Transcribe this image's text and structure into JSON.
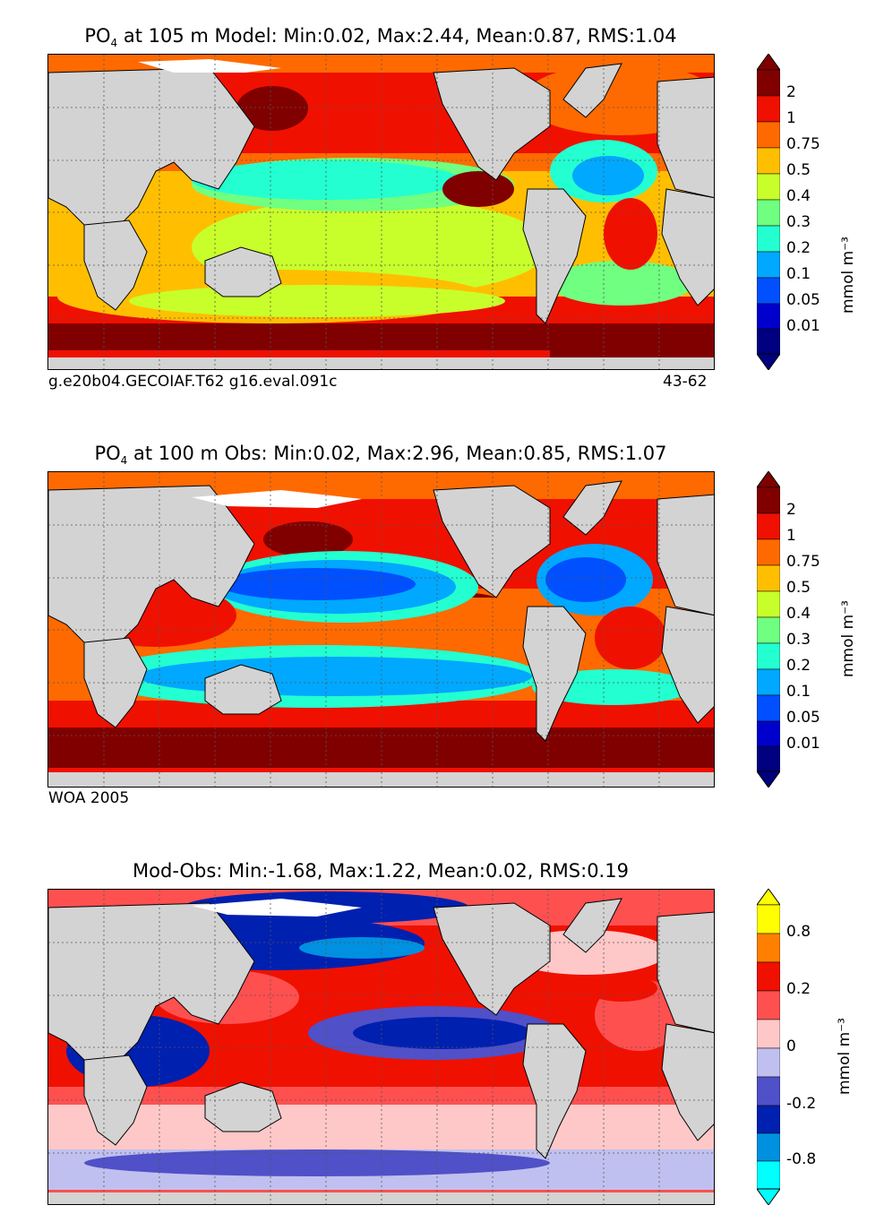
{
  "panels": [
    {
      "title_prefix": "PO",
      "title_sub": "4",
      "title_rest": " at 105 m Model: Min:0.02, Max:2.44, Mean:0.87, RMS:1.04",
      "note_left": "g.e20b04.GECOIAF.T62 g16.eval.091c",
      "note_right": "43-62",
      "colorbar": {
        "ticks": [
          "2",
          "1",
          "0.75",
          "0.5",
          "0.4",
          "0.3",
          "0.2",
          "0.1",
          "0.05",
          "0.01"
        ],
        "colors": [
          "#000080",
          "#0000cd",
          "#0050ff",
          "#00a8ff",
          "#23ffd0",
          "#70ff80",
          "#c8ff2b",
          "#ffbf00",
          "#ff6a00",
          "#f01000",
          "#800000"
        ],
        "unit": "mmol m⁻³"
      }
    },
    {
      "title_prefix": "PO",
      "title_sub": "4",
      "title_rest": " at 100 m Obs: Min:0.02, Max:2.96, Mean:0.85, RMS:1.07",
      "note_left": "WOA 2005",
      "note_right": "",
      "colorbar": {
        "ticks": [
          "2",
          "1",
          "0.75",
          "0.5",
          "0.4",
          "0.3",
          "0.2",
          "0.1",
          "0.05",
          "0.01"
        ],
        "colors": [
          "#000080",
          "#0000cd",
          "#0050ff",
          "#00a8ff",
          "#23ffd0",
          "#70ff80",
          "#c8ff2b",
          "#ffbf00",
          "#ff6a00",
          "#f01000",
          "#800000"
        ],
        "unit": "mmol m⁻³"
      }
    },
    {
      "title_prefix": "",
      "title_sub": "",
      "title_rest": "Mod-Obs: Min:-1.68, Max:1.22, Mean:0.02, RMS:0.19",
      "note_left": "",
      "note_right": "",
      "colorbar": {
        "ticks": [
          "0.8",
          "0.2",
          "0",
          "-0.2",
          "-0.8"
        ],
        "colors": [
          "#00ffff",
          "#0090e0",
          "#0020b0",
          "#5050c8",
          "#c0c0f0",
          "#ffc8c8",
          "#ff5050",
          "#f01000",
          "#ff8000",
          "#ffff00"
        ],
        "unit": "mmol m⁻³"
      }
    }
  ]
}
